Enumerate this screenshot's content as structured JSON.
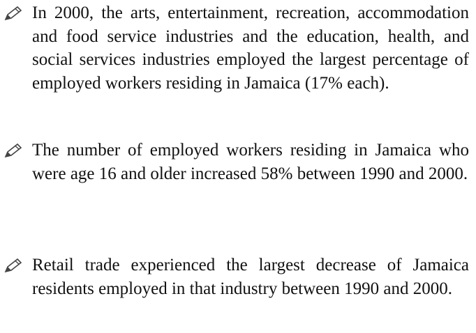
{
  "bullets": [
    "In 2000, the arts, entertainment, recreation, accommodation and food service industries and the education, health, and social services industries employed the largest percentage of employed workers residing in Jamaica (17% each).",
    "The number of employed workers residing in Jamaica who were age 16 and older increased 58% between 1990 and 2000.",
    "Retail trade experienced the largest decrease of Jamaica residents employed in that industry between 1990 and 2000."
  ]
}
